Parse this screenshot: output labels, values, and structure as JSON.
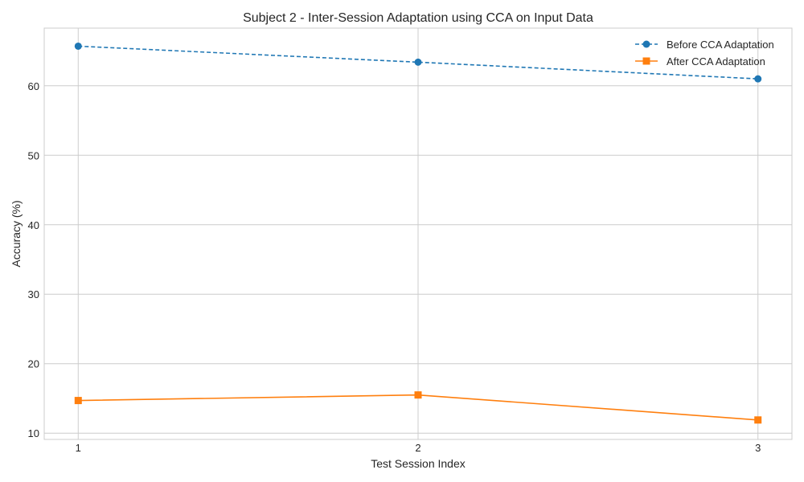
{
  "chart_data": {
    "type": "line",
    "title": "Subject 2 - Inter-Session Adaptation using CCA on Input Data",
    "xlabel": "Test Session Index",
    "ylabel": "Accuracy (%)",
    "x": [
      1,
      2,
      3
    ],
    "xticks": [
      "1",
      "2",
      "3"
    ],
    "yticks": [
      "10",
      "20",
      "30",
      "40",
      "50",
      "60"
    ],
    "xlim": [
      0.9,
      3.1
    ],
    "ylim": [
      9.1,
      68.3
    ],
    "grid": true,
    "legend_position": "top-right",
    "series": [
      {
        "name": "Before CCA Adaptation",
        "values": [
          65.7,
          63.4,
          61.0
        ],
        "color": "#1f77b4",
        "line_style": "dashed",
        "marker": "circle"
      },
      {
        "name": "After CCA Adaptation",
        "values": [
          14.7,
          15.5,
          11.9
        ],
        "color": "#ff7f0e",
        "line_style": "solid",
        "marker": "square"
      }
    ]
  }
}
